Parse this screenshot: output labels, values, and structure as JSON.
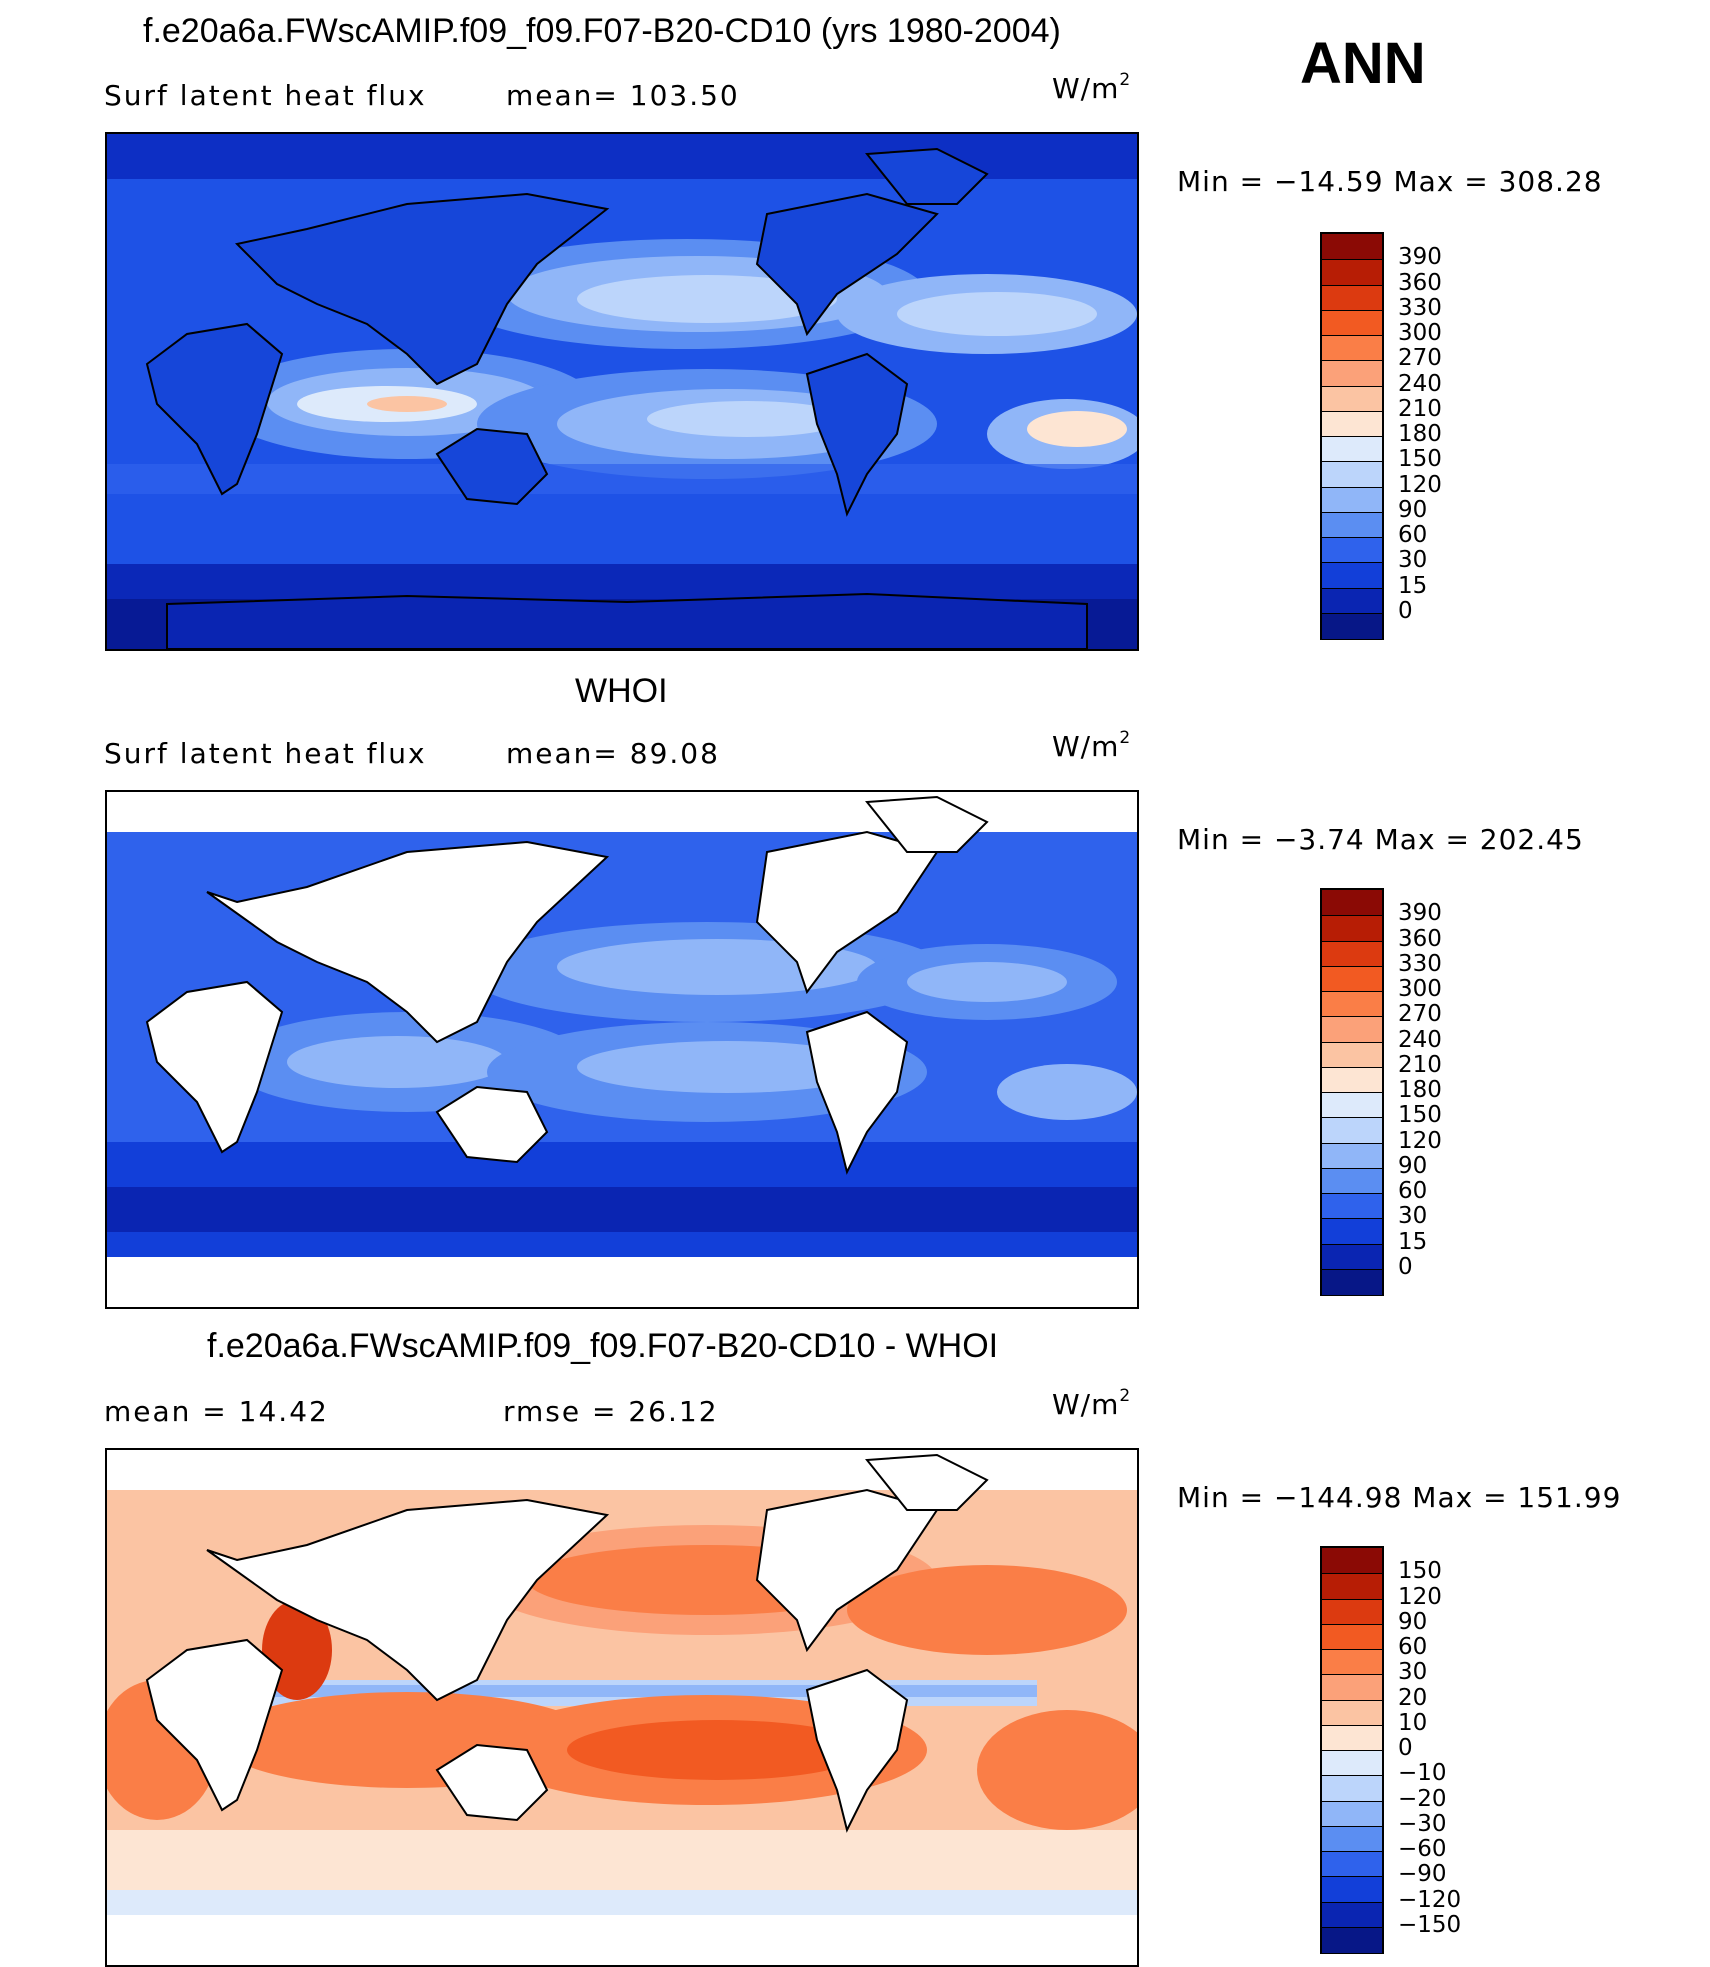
{
  "figure": {
    "season": "ANN"
  },
  "panels": [
    {
      "title": "f.e20a6a.FWscAMIP.f09_f09.F07-B20-CD10 (yrs 1980-2004)",
      "left_label": "Surf  latent  heat  flux",
      "center_label": "mean=  103.50",
      "units": "W/m",
      "units_sup": "2",
      "minmax": "Min  =  −14.59  Max  =  308.28",
      "colorbar_levels": [
        "390",
        "360",
        "330",
        "300",
        "270",
        "240",
        "210",
        "180",
        "150",
        "120",
        "90",
        "60",
        "30",
        "15",
        "0"
      ],
      "colorbar_colors": [
        "#8b0a05",
        "#b71d05",
        "#dc3a10",
        "#f25a22",
        "#fa7e47",
        "#fba179",
        "#fbc4a3",
        "#fde5d3",
        "#ddeafb",
        "#bcd5fb",
        "#90b6f8",
        "#5b8ef2",
        "#2f62ec",
        "#123fd9",
        "#0a25b2",
        "#071787"
      ]
    },
    {
      "title": "WHOI",
      "left_label": "Surf  latent  heat  flux",
      "center_label": "mean=   89.08",
      "units": "W/m",
      "units_sup": "2",
      "minmax": "Min  =    −3.74  Max  =  202.45",
      "colorbar_levels": [
        "390",
        "360",
        "330",
        "300",
        "270",
        "240",
        "210",
        "180",
        "150",
        "120",
        "90",
        "60",
        "30",
        "15",
        "0"
      ],
      "colorbar_colors": [
        "#8b0a05",
        "#b71d05",
        "#dc3a10",
        "#f25a22",
        "#fa7e47",
        "#fba179",
        "#fbc4a3",
        "#fde5d3",
        "#ddeafb",
        "#bcd5fb",
        "#90b6f8",
        "#5b8ef2",
        "#2f62ec",
        "#123fd9",
        "#0a25b2",
        "#071787"
      ]
    },
    {
      "title": "f.e20a6a.FWscAMIP.f09_f09.F07-B20-CD10 - WHOI",
      "left_label": "mean  =     14.42",
      "center_label": "rmse  =     26.12",
      "units": "W/m",
      "units_sup": "2",
      "minmax": "Min  =  −144.98  Max  =  151.99",
      "colorbar_levels": [
        "150",
        "120",
        "90",
        "60",
        "30",
        "20",
        "10",
        "0",
        "−10",
        "−20",
        "−30",
        "−60",
        "−90",
        "−120",
        "−150"
      ],
      "colorbar_colors": [
        "#8b0a05",
        "#b71d05",
        "#dc3a10",
        "#f25a22",
        "#fa7e47",
        "#fba179",
        "#fbc4a3",
        "#fde5d3",
        "#ddeafb",
        "#bcd5fb",
        "#90b6f8",
        "#5b8ef2",
        "#2f62ec",
        "#123fd9",
        "#0a25b2",
        "#071787"
      ]
    }
  ]
}
